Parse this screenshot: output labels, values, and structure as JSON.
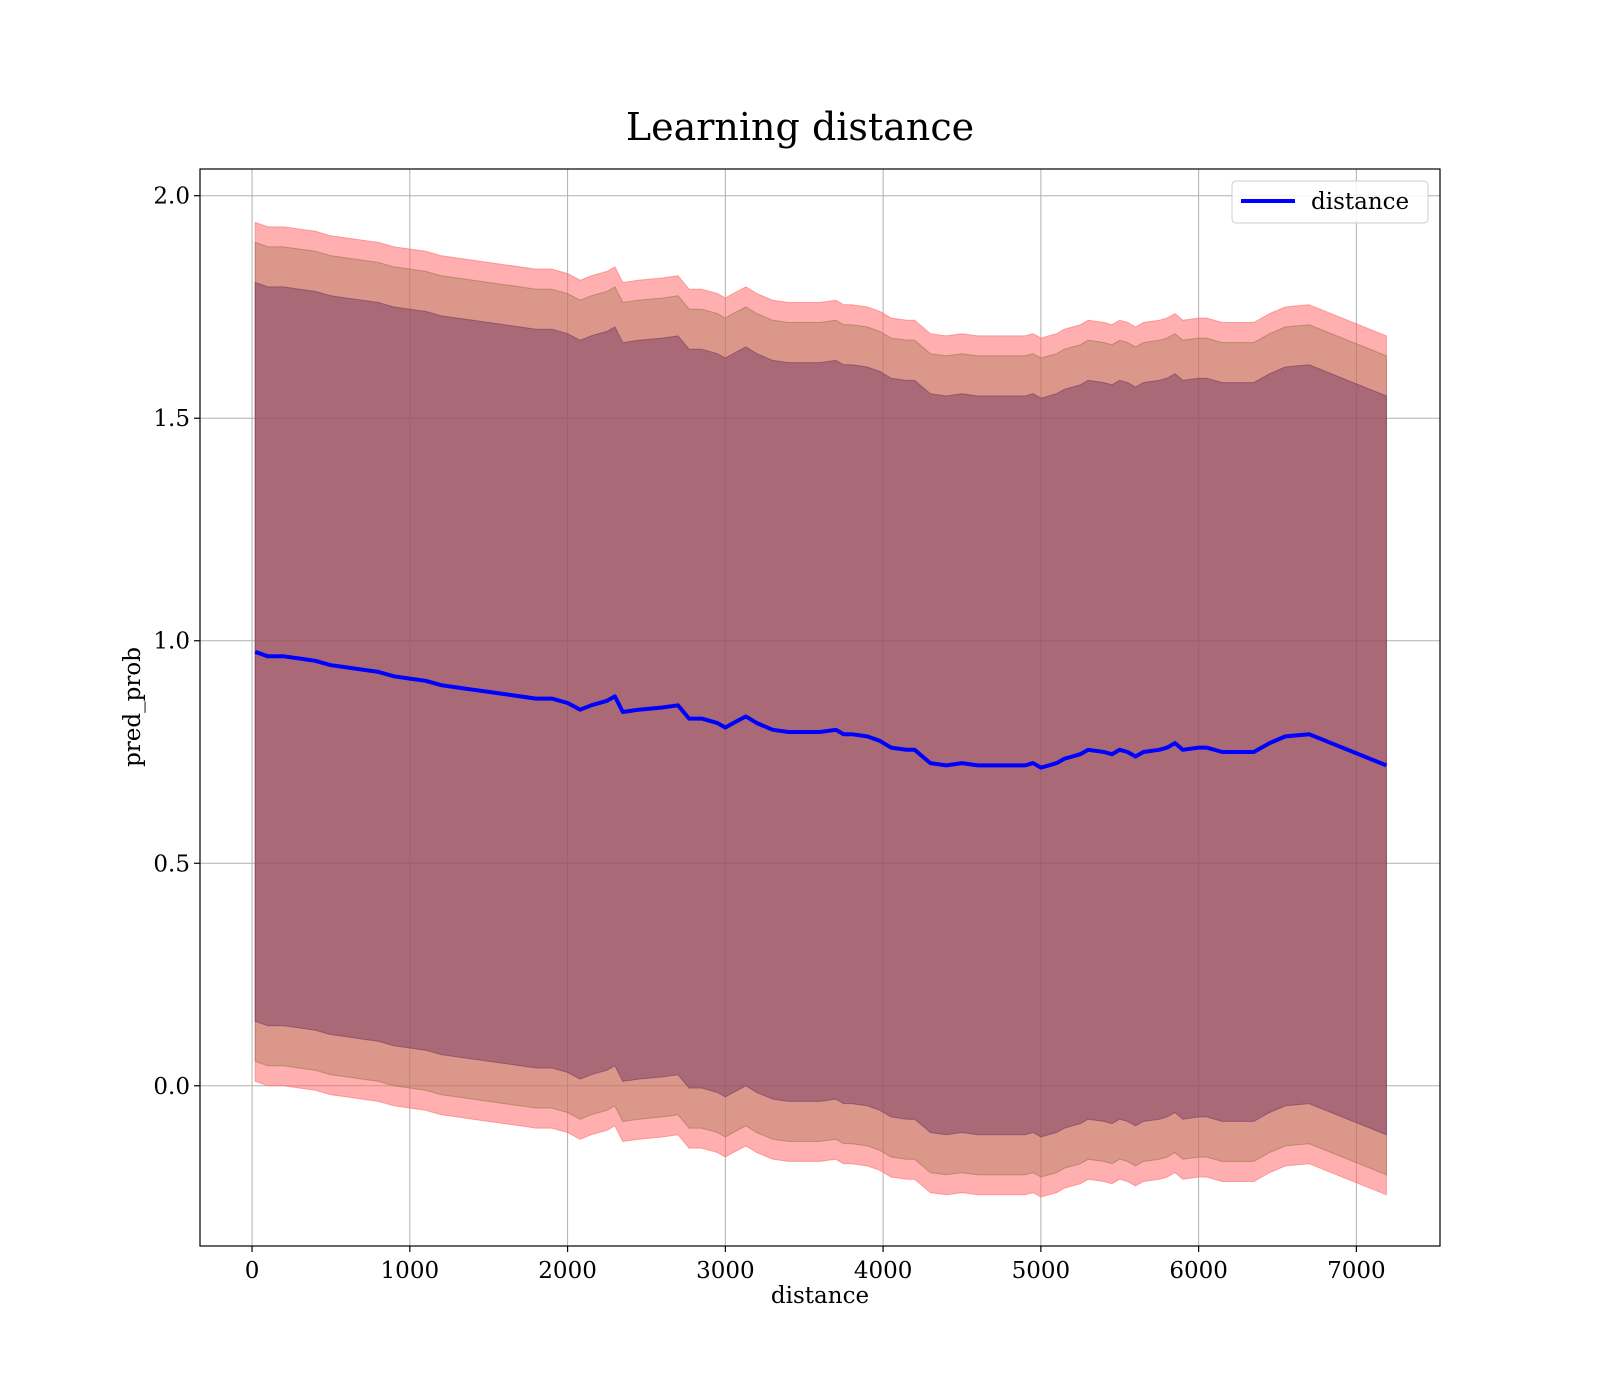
{
  "chart_data": {
    "type": "line",
    "title": "Learning distance",
    "xlabel": "distance",
    "ylabel": "pred_prob",
    "xlim": [
      -330,
      7530
    ],
    "ylim": [
      -0.36,
      2.06
    ],
    "xticks": [
      0,
      1000,
      2000,
      3000,
      4000,
      5000,
      6000,
      7000
    ],
    "yticks": [
      0.0,
      0.5,
      1.0,
      1.5,
      2.0
    ],
    "ytick_labels": [
      "0.0",
      "0.5",
      "1.0",
      "1.5",
      "2.0"
    ],
    "grid": true,
    "legend": {
      "position": "top-right",
      "entries": [
        "distance"
      ]
    },
    "series": [
      {
        "name": "distance",
        "color": "#0000ff",
        "x": [
          20,
          100,
          200,
          300,
          400,
          500,
          600,
          700,
          800,
          900,
          1000,
          1100,
          1200,
          1300,
          1400,
          1500,
          1600,
          1700,
          1800,
          1900,
          2000,
          2080,
          2150,
          2250,
          2300,
          2350,
          2450,
          2600,
          2700,
          2770,
          2850,
          2950,
          3000,
          3050,
          3130,
          3200,
          3300,
          3400,
          3500,
          3600,
          3700,
          3750,
          3800,
          3900,
          3980,
          4050,
          4150,
          4200,
          4250,
          4300,
          4400,
          4500,
          4600,
          4700,
          4800,
          4900,
          4950,
          5000,
          5050,
          5100,
          5150,
          5200,
          5250,
          5300,
          5400,
          5450,
          5500,
          5550,
          5600,
          5650,
          5750,
          5800,
          5850,
          5900,
          6000,
          6050,
          6150,
          6250,
          6350,
          6450,
          6550,
          6700,
          7190
        ],
        "y": [
          0.975,
          0.965,
          0.965,
          0.96,
          0.955,
          0.945,
          0.94,
          0.935,
          0.93,
          0.92,
          0.915,
          0.91,
          0.9,
          0.895,
          0.89,
          0.885,
          0.88,
          0.875,
          0.87,
          0.87,
          0.86,
          0.845,
          0.855,
          0.865,
          0.875,
          0.84,
          0.845,
          0.85,
          0.855,
          0.825,
          0.825,
          0.815,
          0.805,
          0.815,
          0.83,
          0.815,
          0.8,
          0.795,
          0.795,
          0.795,
          0.8,
          0.79,
          0.79,
          0.785,
          0.775,
          0.76,
          0.755,
          0.755,
          0.74,
          0.725,
          0.72,
          0.725,
          0.72,
          0.72,
          0.72,
          0.72,
          0.725,
          0.715,
          0.72,
          0.725,
          0.735,
          0.74,
          0.745,
          0.755,
          0.75,
          0.745,
          0.755,
          0.75,
          0.74,
          0.75,
          0.755,
          0.76,
          0.77,
          0.755,
          0.76,
          0.76,
          0.75,
          0.75,
          0.75,
          0.77,
          0.785,
          0.79,
          0.72
        ]
      }
    ],
    "bands": [
      {
        "color": "#ff6e6e",
        "half_width": 0.965,
        "opacity": 0.55
      },
      {
        "color": "#a0744e",
        "half_width": 0.92,
        "opacity": 0.38
      },
      {
        "color": "#7a3a64",
        "half_width": 0.83,
        "opacity": 0.5
      }
    ]
  }
}
